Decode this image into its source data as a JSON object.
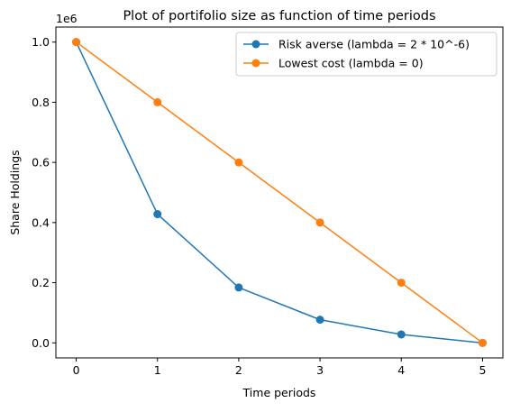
{
  "chart_data": {
    "type": "line",
    "title": "Plot of portifolio size as function of time periods",
    "xlabel": "Time periods",
    "ylabel": "Share Holdings",
    "y_offset_label": "1e6",
    "x": [
      0,
      1,
      2,
      3,
      4,
      5
    ],
    "xlim": [
      -0.25,
      5.25
    ],
    "ylim": [
      -0.05,
      1.05
    ],
    "x_ticks": [
      0,
      1,
      2,
      3,
      4,
      5
    ],
    "x_tick_labels": [
      "0",
      "1",
      "2",
      "3",
      "4",
      "5"
    ],
    "y_ticks": [
      0.0,
      0.2,
      0.4,
      0.6,
      0.8,
      1.0
    ],
    "y_tick_labels": [
      "0.0",
      "0.2",
      "0.4",
      "0.6",
      "0.8",
      "1.0"
    ],
    "y_scale_multiplier": 1000000,
    "grid": false,
    "legend_position": "top-right",
    "series": [
      {
        "name": "Risk averse (lambda = 2 * 10^-6)",
        "color": "#1f77b4",
        "marker": "circle",
        "values": [
          1.0,
          0.428,
          0.184,
          0.077,
          0.028,
          0.0
        ]
      },
      {
        "name": "Lowest cost (lambda = 0)",
        "color": "#ff7f0e",
        "marker": "circle",
        "values": [
          1.0,
          0.8,
          0.6,
          0.4,
          0.2,
          0.0
        ]
      }
    ]
  }
}
